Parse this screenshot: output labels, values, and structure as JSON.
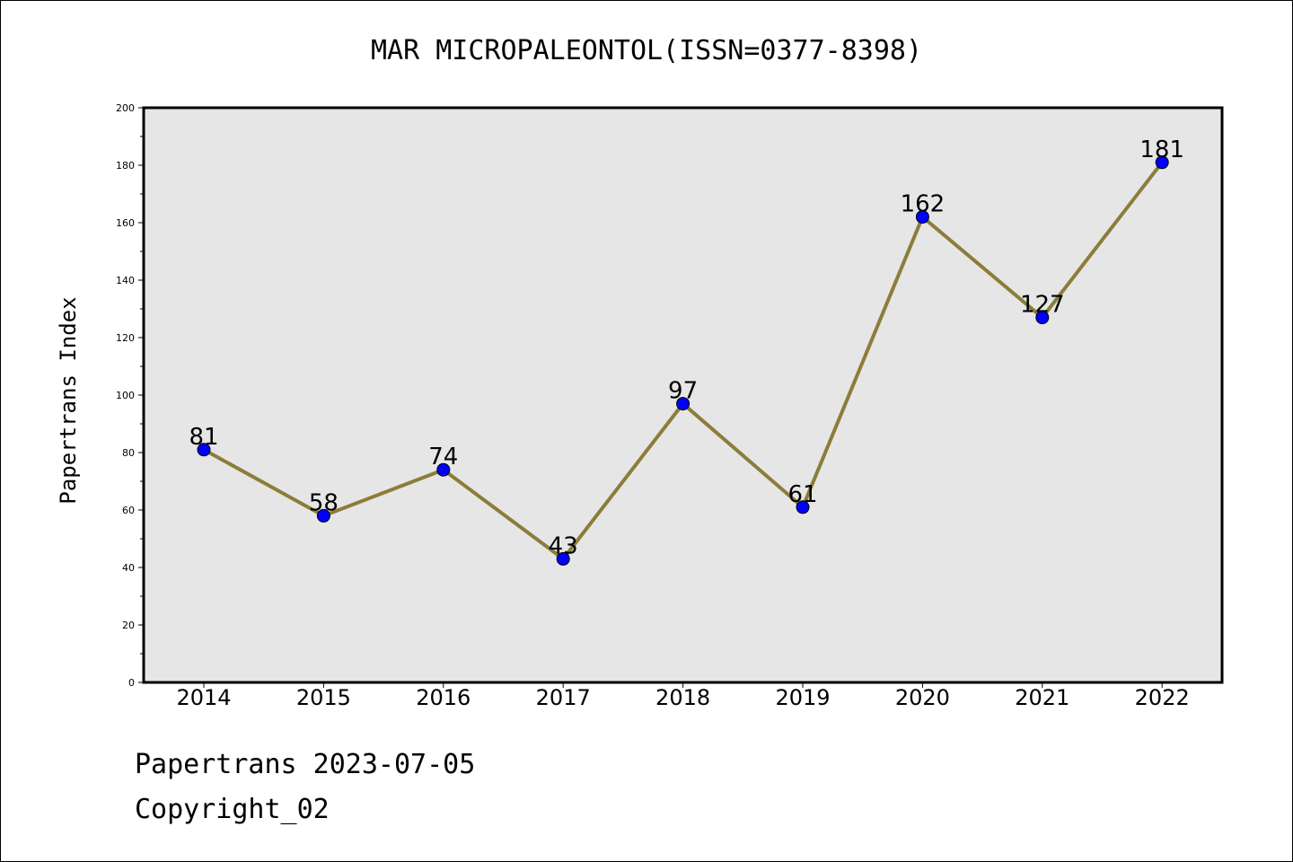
{
  "chart_data": {
    "type": "line",
    "title": "MAR MICROPALEONTOL(ISSN=0377-8398)",
    "xlabel": "",
    "ylabel": "Papertrans Index",
    "categories": [
      "2014",
      "2015",
      "2016",
      "2017",
      "2018",
      "2019",
      "2020",
      "2021",
      "2022"
    ],
    "series": [
      {
        "values": [
          81,
          58,
          74,
          43,
          97,
          61,
          162,
          127,
          181
        ]
      }
    ],
    "ylim": [
      0,
      200
    ],
    "yticks": [
      0,
      20,
      40,
      60,
      80,
      100,
      120,
      140,
      160,
      180,
      200
    ],
    "grid": false,
    "colors": {
      "line": "#8b7d3a",
      "marker": "#0000ff",
      "plot_bg": "#e6e6e6"
    }
  },
  "footer": {
    "line1": "Papertrans 2023-07-05",
    "line2": "Copyright_02"
  }
}
